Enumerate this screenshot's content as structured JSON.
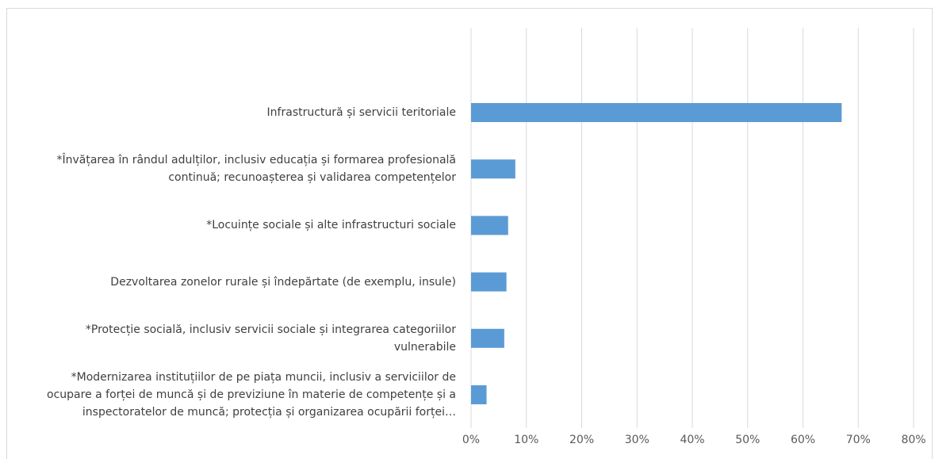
{
  "chart_data": {
    "type": "bar",
    "orientation": "horizontal",
    "categories": [
      "Infrastructură și servicii teritoriale",
      "*Învățarea în rândul adulților, inclusiv educația și formarea profesională continuă; recunoașterea și validarea competențelor",
      "*Locuințe sociale și alte infrastructuri sociale",
      "Dezvoltarea zonelor rurale și îndepărtate (de exemplu, insule)",
      "*Protecție socială, inclusiv servicii sociale și integrarea categoriilor vulnerabile",
      "*Modernizarea instituțiilor de pe piața muncii, inclusiv a serviciilor de ocupare a forței de muncă și de previziune în materie de competențe și a inspectoratelor de muncă; protecția și organizarea ocupării forței…"
    ],
    "values": [
      67,
      8,
      6.7,
      6.4,
      6,
      2.8
    ],
    "color": "#5b9bd5",
    "xlim": [
      0,
      80
    ],
    "xticks": [
      {
        "value": 0,
        "label": "0%"
      },
      {
        "value": 10,
        "label": "10%"
      },
      {
        "value": 20,
        "label": "20%"
      },
      {
        "value": 30,
        "label": "30%"
      },
      {
        "value": 40,
        "label": "40%"
      },
      {
        "value": 50,
        "label": "50%"
      },
      {
        "value": 60,
        "label": "60%"
      },
      {
        "value": 70,
        "label": "70%"
      },
      {
        "value": 80,
        "label": "80%"
      }
    ],
    "grid": true
  }
}
